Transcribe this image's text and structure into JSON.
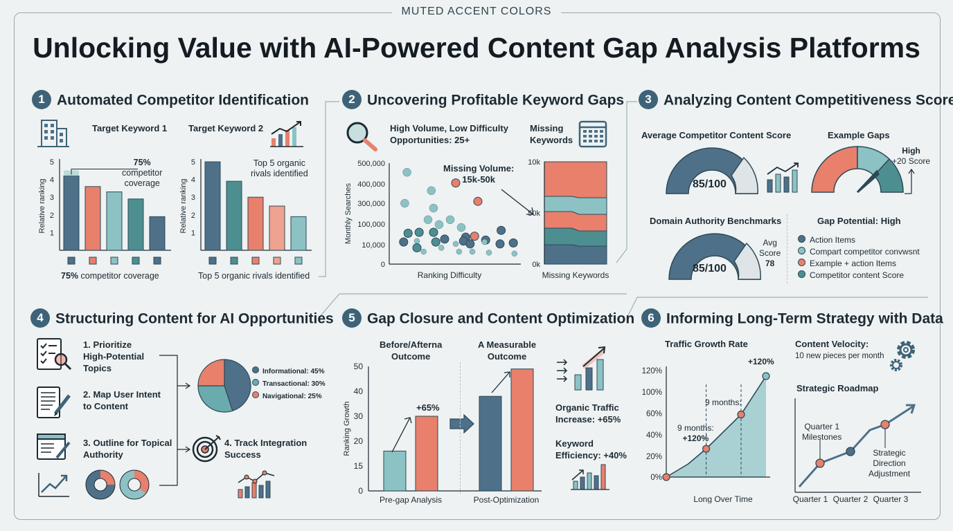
{
  "banner": "MUTED ACCENT COLORS",
  "title": "Unlocking Value with AI-Powered Content Gap Analysis Platforms",
  "colors": {
    "navy": "#4e7189",
    "coral": "#e8806c",
    "teal": "#8cc2c4",
    "green": "#4d8f91",
    "gray": "#dfe5e6"
  },
  "sections": [
    {
      "num": "1",
      "title": "Automated Competitor Identification"
    },
    {
      "num": "2",
      "title": "Uncovering Profitable Keyword Gaps"
    },
    {
      "num": "3",
      "title": "Analyzing Content Competitiveness Score"
    },
    {
      "num": "4",
      "title": "Structuring Content for AI Opportunities"
    },
    {
      "num": "5",
      "title": "Gap Closure and Content Optimization"
    },
    {
      "num": "6",
      "title": "Informing Long-Term Strategy with Data"
    }
  ],
  "s1": {
    "chart1_title": "Target Keyword 1",
    "chart2_title": "Target Keyword 2",
    "callout1": [
      "75%",
      "competitor",
      "coverage"
    ],
    "callout2": [
      "Top 5 organic",
      "rivals identified"
    ],
    "caption1_bold": "75%",
    "caption1_rest": " competitor coverage",
    "caption2": "Top 5 organic rivals identified"
  },
  "s2": {
    "label1": [
      "High Volume, Low Difficulty",
      "Opportunities: 25+"
    ],
    "label2": [
      "Missing",
      "Keywords"
    ],
    "callout": [
      "Missing Volume:",
      "15k-50k"
    ]
  },
  "s3": {
    "avg_label": "Average Competitor Content Score",
    "gauge1_value": "85/100",
    "example_label": "Example Gaps",
    "high_label": [
      "High",
      "+20 Score"
    ],
    "domain_label": "Domain Authority Benchmarks",
    "gauge2_value": "85/100",
    "avg_score": [
      "Avg",
      "Score",
      "78"
    ],
    "gap_potential": "Gap Potential: High",
    "legend": [
      {
        "label": "Action Items",
        "color": "#4e7189"
      },
      {
        "label": "Compart competitor convwsnt",
        "color": "#8cc2c4"
      },
      {
        "label": "Example + action Items",
        "color": "#e8806c"
      },
      {
        "label": "Competitor content Score",
        "color": "#4d8f91"
      }
    ]
  },
  "s4": {
    "steps": [
      [
        "1. Prioritize",
        "High-Potential",
        "Topics"
      ],
      [
        "2. Map User Intent",
        "to Content"
      ],
      [
        "3. Outline for Topical",
        "Authority"
      ],
      [
        "4. Track Integration",
        "Success"
      ]
    ]
  },
  "s5": {
    "left_title": [
      "Before/Afterna",
      "Outcome"
    ],
    "right_title": [
      "A Measurable",
      "Outcome"
    ],
    "bar_label": "+65%",
    "traffic": [
      "Organic Traffic",
      "Increase: +65%"
    ],
    "keyword": [
      "Keyword",
      "Efficiency: +40%"
    ]
  },
  "s6": {
    "traffic_title": "Traffic Growth Rate",
    "annot1": [
      "9 months:",
      "+120%"
    ],
    "annot2": "9 months:",
    "annot3": "+120%",
    "velocity": [
      "Content Velocity:",
      "10 new pieces per month"
    ],
    "roadmap_title": "Strategic Roadmap",
    "roadmap_labels": [
      [
        "Quarter 1",
        "Milestones"
      ],
      [
        "Strategic",
        "Direction",
        "Adjustment"
      ]
    ]
  },
  "chart_data": [
    {
      "type": "bar",
      "title": "Target Keyword 1",
      "ylabel": "Relative ranking",
      "ylim": [
        0,
        5
      ],
      "yticks": [
        1,
        2,
        3,
        4,
        5
      ],
      "values": [
        4.2,
        3.6,
        3.3,
        2.9,
        1.9
      ],
      "colors": [
        "#4e7189",
        "#e8806c",
        "#8cc2c4",
        "#4d8f91",
        "#4e7189"
      ]
    },
    {
      "type": "bar",
      "title": "Target Keyword 2",
      "ylabel": "Relative ranking",
      "ylim": [
        0,
        5
      ],
      "yticks": [
        1,
        2,
        3,
        4,
        5
      ],
      "values": [
        5.0,
        3.9,
        3.0,
        2.5,
        1.9
      ],
      "colors": [
        "#4e7189",
        "#4d8f91",
        "#e8806c",
        "#efa28f",
        "#8cc2c4"
      ]
    },
    {
      "type": "scatter",
      "xlabel": "Ranking Difficulty",
      "ylabel": "Monthly Searches",
      "yticks": [
        "500,000",
        "400,000",
        "300,000",
        "100,000",
        "10,000",
        "0"
      ],
      "points": [
        {
          "x": 0.11,
          "y": 0.92,
          "c": "#8cc2c4"
        },
        {
          "x": 0.55,
          "y": 0.81,
          "c": "#e8806c"
        },
        {
          "x": 0.75,
          "y": 0.62,
          "c": "#e8806c"
        },
        {
          "x": 0.09,
          "y": 0.6,
          "c": "#8cc2c4"
        },
        {
          "x": 0.33,
          "y": 0.73,
          "c": "#8cc2c4"
        },
        {
          "x": 0.22,
          "y": 0.3,
          "c": "#4d8f91"
        },
        {
          "x": 0.3,
          "y": 0.43,
          "c": "#8cc2c4"
        },
        {
          "x": 0.4,
          "y": 0.38,
          "c": "#8cc2c4"
        },
        {
          "x": 0.5,
          "y": 0.43,
          "c": "#8cc2c4"
        },
        {
          "x": 0.12,
          "y": 0.29,
          "c": "#4d8f91"
        },
        {
          "x": 0.35,
          "y": 0.3,
          "c": "#4d8f91"
        },
        {
          "x": 0.6,
          "y": 0.35,
          "c": "#8cc2c4"
        },
        {
          "x": 0.45,
          "y": 0.23,
          "c": "#4e7189"
        },
        {
          "x": 0.64,
          "y": 0.25,
          "c": "#4e7189"
        },
        {
          "x": 0.72,
          "y": 0.26,
          "c": "#e8806c"
        },
        {
          "x": 0.82,
          "y": 0.22,
          "c": "#4e7189"
        },
        {
          "x": 0.96,
          "y": 0.32,
          "c": "#4e7189"
        },
        {
          "x": 0.08,
          "y": 0.2,
          "c": "#4e7189"
        },
        {
          "x": 0.2,
          "y": 0.21,
          "c": "#8cc2c4"
        },
        {
          "x": 0.37,
          "y": 0.2,
          "c": "#4d8f91"
        },
        {
          "x": 0.55,
          "y": 0.18,
          "c": "#8cc2c4"
        },
        {
          "x": 0.62,
          "y": 0.21,
          "c": "#4e7189"
        },
        {
          "x": 0.68,
          "y": 0.18,
          "c": "#4e7189"
        },
        {
          "x": 0.81,
          "y": 0.2,
          "c": "#8cc2c4"
        },
        {
          "x": 0.95,
          "y": 0.18,
          "c": "#4e7189"
        },
        {
          "x": 1.07,
          "y": 0.19,
          "c": "#4e7189"
        },
        {
          "x": 0.26,
          "y": 0.1,
          "c": "#8cc2c4"
        },
        {
          "x": 0.58,
          "y": 0.1,
          "c": "#8cc2c4"
        },
        {
          "x": 0.7,
          "y": 0.1,
          "c": "#8cc2c4"
        },
        {
          "x": 0.85,
          "y": 0.09,
          "c": "#8cc2c4"
        },
        {
          "x": 1.08,
          "y": 0.08,
          "c": "#8cc2c4"
        },
        {
          "x": 0.35,
          "y": 0.55,
          "c": "#8cc2c4"
        },
        {
          "x": 0.2,
          "y": 0.14,
          "c": "#4d8f91"
        },
        {
          "x": 0.42,
          "y": 0.14,
          "c": "#8cc2c4"
        }
      ]
    },
    {
      "type": "area",
      "xlabel": "Missing Keywords",
      "yticks": [
        "10k",
        "50k",
        "0k"
      ]
    },
    {
      "type": "pie",
      "categories": [
        "Informational: 45%",
        "Transactional: 30%",
        "Navigational: 25%"
      ],
      "values": [
        45,
        30,
        25
      ],
      "colors": [
        "#4e7189",
        "#6aabad",
        "#e8806c"
      ]
    },
    {
      "type": "bar",
      "ylabel": "Ranking Growth",
      "categories": [
        "Pre-gap Analysis",
        "Post-Optimization"
      ],
      "yticks": [
        "50",
        "40",
        "30",
        "20",
        "15",
        "0"
      ],
      "ylim": [
        0,
        50
      ],
      "series": [
        {
          "values": [
            16,
            38
          ]
        },
        {
          "values": [
            30,
            49
          ]
        }
      ],
      "colors": [
        [
          "#8cc2c4",
          "#e8806c"
        ],
        [
          "#4e7189",
          "#e8806c"
        ]
      ]
    },
    {
      "type": "area",
      "xlabel": "Long Over Time",
      "yticks": [
        "120%",
        "100%",
        "60%",
        "40%",
        "20%",
        "0%"
      ],
      "values": [
        0,
        0.18,
        0.38,
        0.63,
        1.0
      ]
    },
    {
      "type": "line",
      "categories": [
        "Quarter 1",
        "Quarter 2",
        "Quarter 3"
      ]
    }
  ]
}
